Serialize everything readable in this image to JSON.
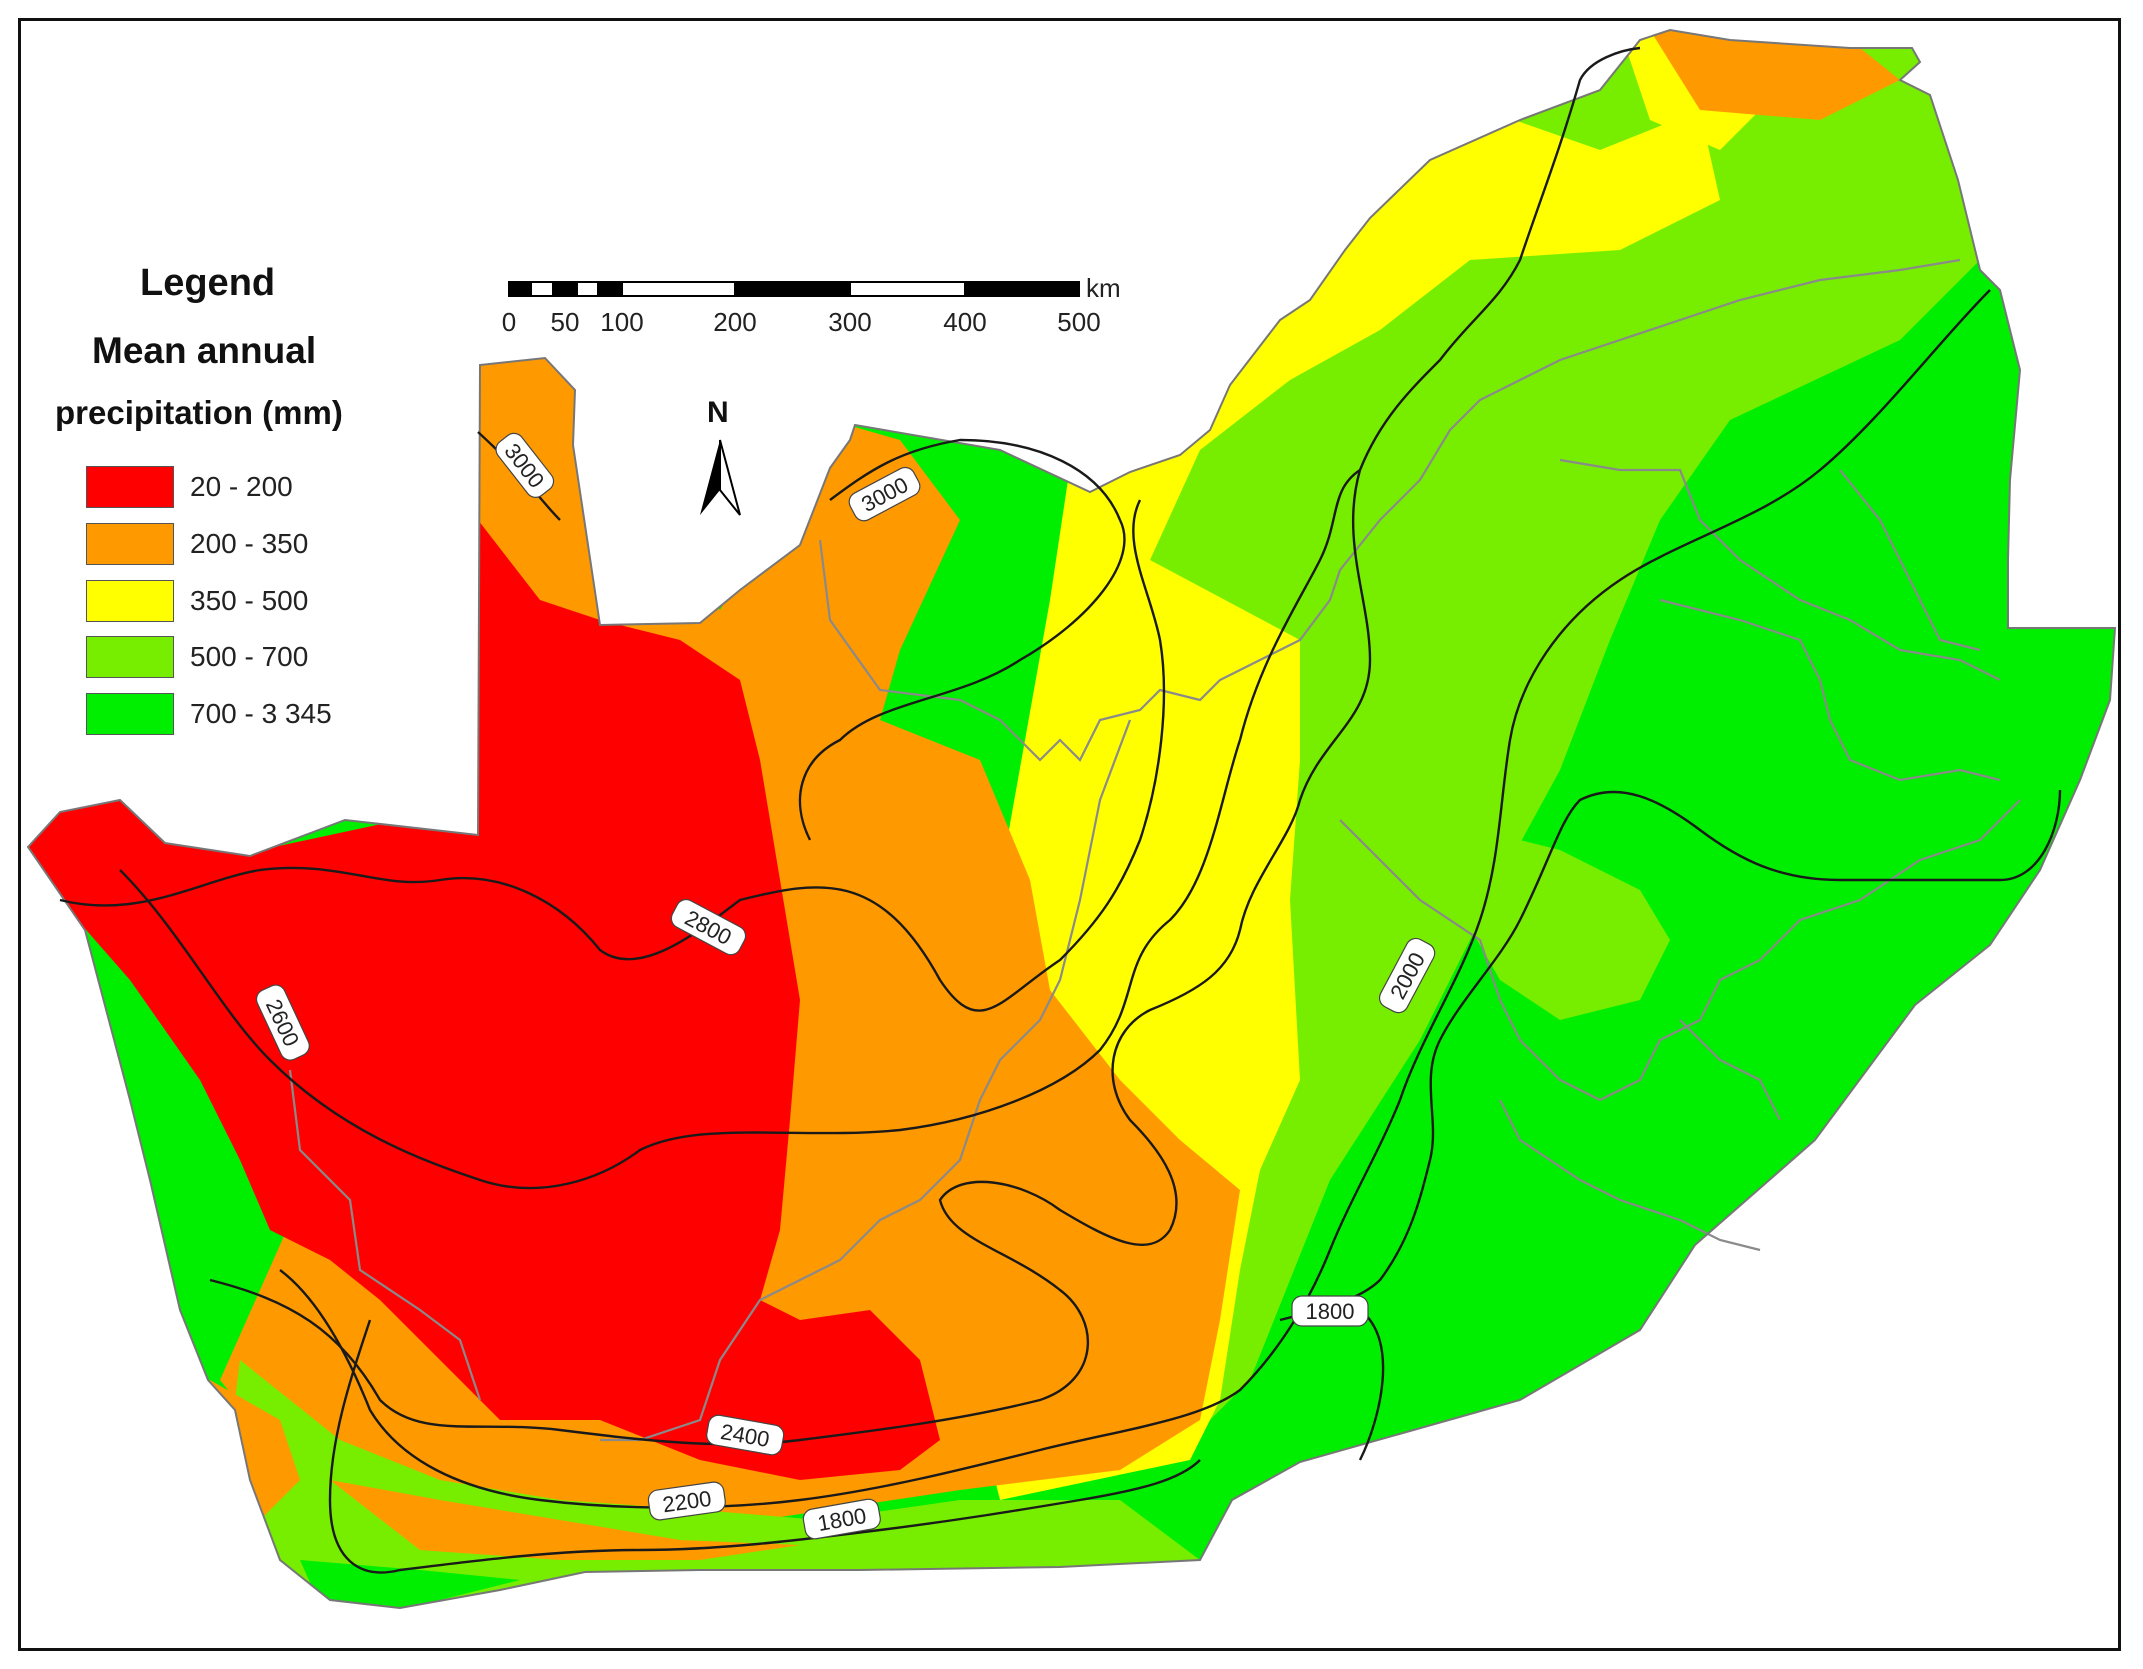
{
  "legend": {
    "title": "Legend",
    "subtitle_line1": "Mean annual",
    "subtitle_line2": "precipitation (mm)",
    "items": [
      {
        "label": "20 - 200",
        "color": "#ff0000"
      },
      {
        "label": "200 - 350",
        "color": "#ff9900"
      },
      {
        "label": "350 - 500",
        "color": "#ffff00"
      },
      {
        "label": "500 - 700",
        "color": "#77ee00"
      },
      {
        "label": "700 - 3 345",
        "color": "#00ee00"
      }
    ]
  },
  "scale_bar": {
    "unit": "km",
    "ticks": [
      "0",
      "50",
      "100",
      "200",
      "300",
      "400",
      "500"
    ]
  },
  "north_arrow": {
    "label": "N"
  },
  "contour_labels": [
    "3000",
    "3000",
    "2800",
    "2600",
    "2000",
    "1800",
    "2400",
    "2200",
    "1800"
  ]
}
